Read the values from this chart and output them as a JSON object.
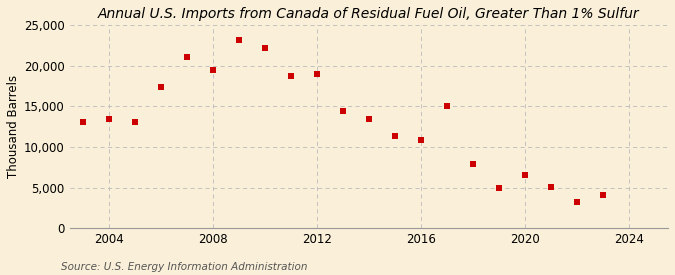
{
  "title": "Annual U.S. Imports from Canada of Residual Fuel Oil, Greater Than 1% Sulfur",
  "ylabel": "Thousand Barrels",
  "source": "Source: U.S. Energy Information Administration",
  "background_color": "#faefd8",
  "years": [
    2003,
    2004,
    2005,
    2006,
    2007,
    2008,
    2009,
    2010,
    2011,
    2012,
    2013,
    2014,
    2015,
    2016,
    2017,
    2018,
    2019,
    2020,
    2021,
    2022,
    2023
  ],
  "values": [
    13100,
    13400,
    13100,
    17400,
    21000,
    19400,
    23100,
    22200,
    18700,
    18900,
    14400,
    13400,
    11300,
    10800,
    15000,
    7900,
    5000,
    6600,
    5100,
    3200,
    4100
  ],
  "marker_color": "#cc0000",
  "marker_size": 25,
  "ylim": [
    0,
    25000
  ],
  "yticks": [
    0,
    5000,
    10000,
    15000,
    20000,
    25000
  ],
  "xlim": [
    2002.5,
    2025.5
  ],
  "xticks": [
    2004,
    2008,
    2012,
    2016,
    2020,
    2024
  ],
  "grid_color": "#bbbbbb",
  "title_fontsize": 10,
  "axis_fontsize": 8.5,
  "source_fontsize": 7.5
}
